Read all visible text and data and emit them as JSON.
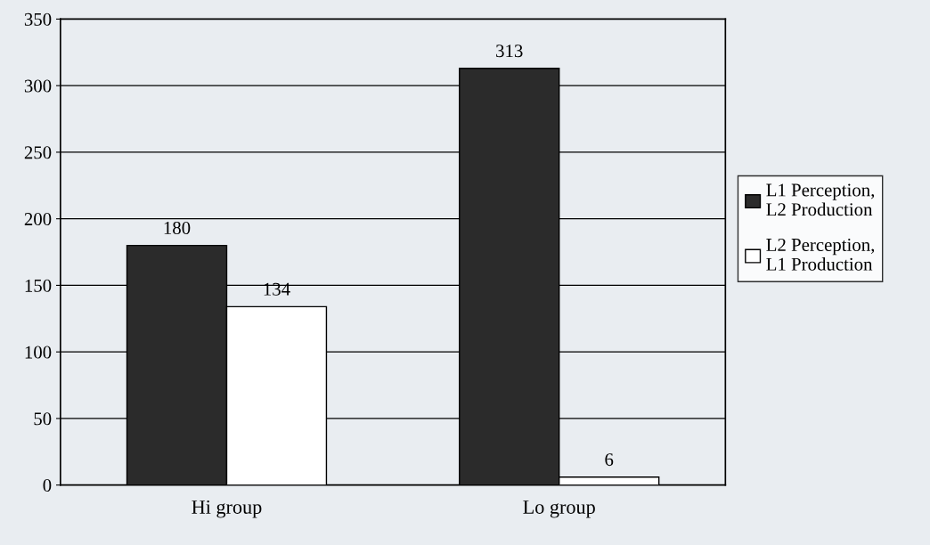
{
  "chart_data": {
    "type": "bar",
    "categories": [
      "Hi group",
      "Lo group"
    ],
    "series": [
      {
        "name": "L1 Perception,\nL2 Production",
        "color": "#2b2b2b",
        "values": [
          180,
          313
        ]
      },
      {
        "name": "L2 Perception,\nL1 Production",
        "color": "#ffffff",
        "values": [
          134,
          6
        ]
      }
    ],
    "ylim": [
      0,
      350
    ],
    "yticks": [
      0,
      50,
      100,
      150,
      200,
      250,
      300,
      350
    ],
    "grid": "y",
    "legend": "right",
    "data_labels": true
  }
}
